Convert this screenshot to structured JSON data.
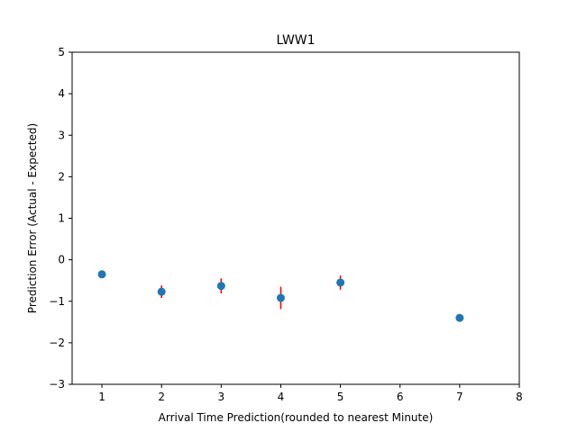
{
  "chart_data": {
    "type": "scatter",
    "title": "LWW1",
    "xlabel": "Arrival Time Prediction(rounded to nearest Minute)",
    "ylabel": "Prediction Error (Actual - Expected)",
    "xlim": [
      0.5,
      8
    ],
    "ylim": [
      -3,
      5
    ],
    "xticks": [
      1,
      2,
      3,
      4,
      5,
      6,
      7,
      8
    ],
    "yticks": [
      -3,
      -2,
      -1,
      0,
      1,
      2,
      3,
      4,
      5
    ],
    "grid": false,
    "legend": "none",
    "series": [
      {
        "x": [
          1,
          2,
          3,
          4,
          5,
          7
        ],
        "y": [
          -0.35,
          -0.77,
          -0.63,
          -0.92,
          -0.55,
          -1.4
        ],
        "yerr": [
          0.05,
          0.15,
          0.18,
          0.27,
          0.17,
          0.0
        ],
        "marker_color": "#1f77b4",
        "errorbar_color": "#ff0000"
      }
    ]
  }
}
